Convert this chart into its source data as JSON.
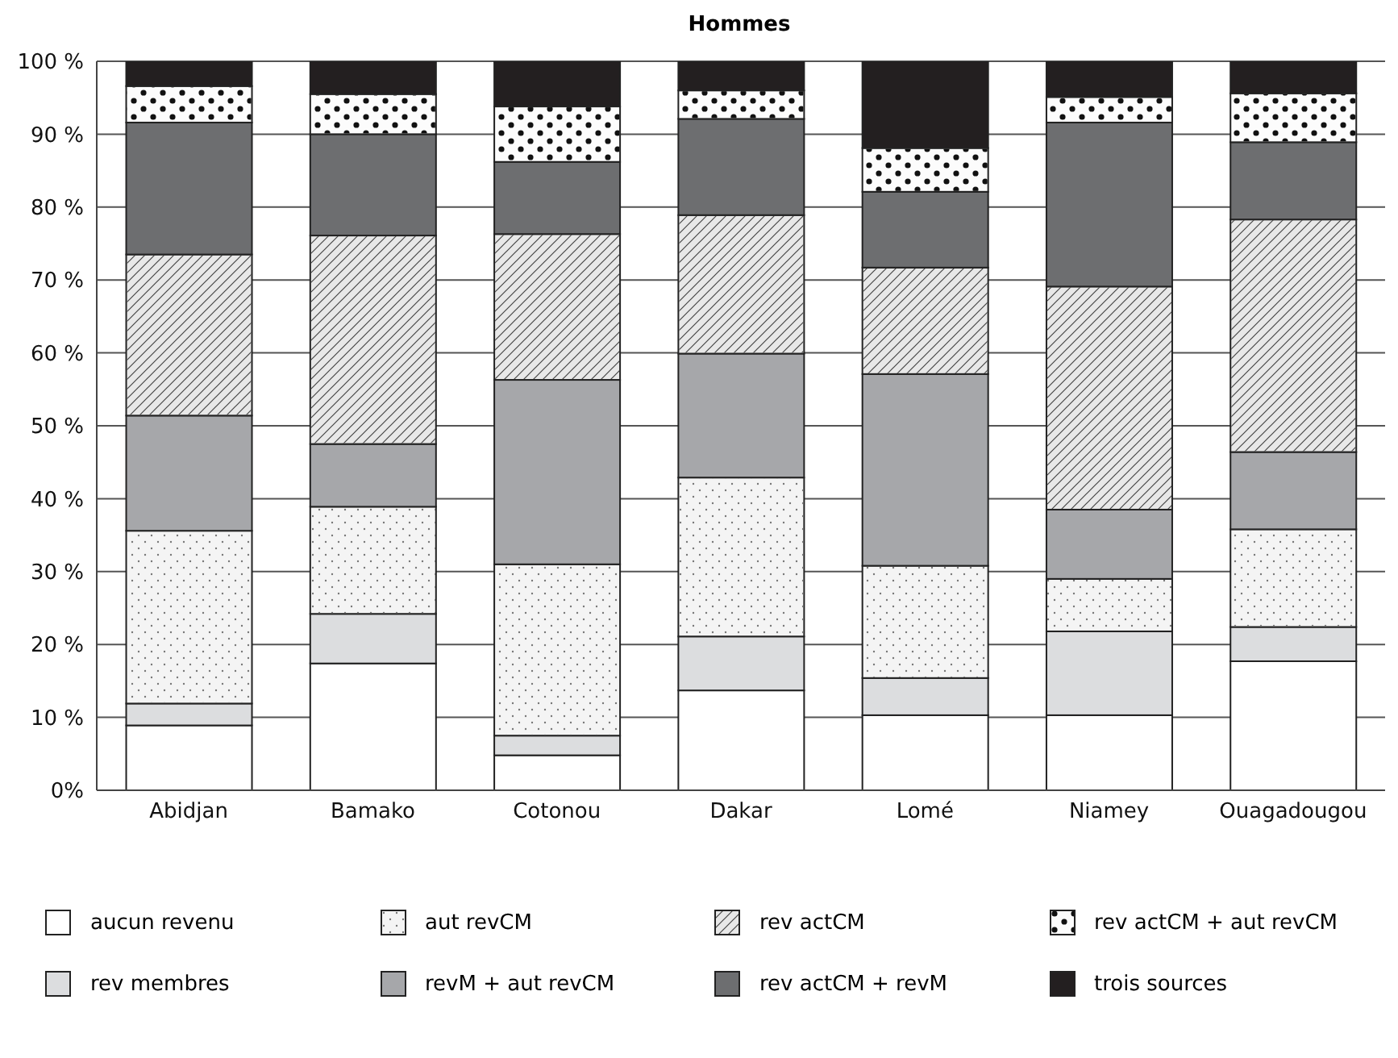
{
  "chart_data": {
    "type": "bar",
    "title": "Hommes",
    "stacked": true,
    "categories": [
      "Abidjan",
      "Bamako",
      "Cotonou",
      "Dakar",
      "Lomé",
      "Niamey",
      "Ouagadougou"
    ],
    "series": [
      {
        "name": "aucun revenu",
        "color": "#ffffff",
        "values": [
          8.9,
          17.4,
          4.8,
          13.7,
          10.3,
          10.3,
          17.7
        ]
      },
      {
        "name": "rev membres",
        "color": "#dcdddf",
        "values": [
          3.0,
          6.8,
          2.7,
          7.4,
          5.1,
          11.5,
          4.7
        ]
      },
      {
        "name": "aut revCM",
        "color": "#f4f4f4",
        "values": [
          23.7,
          14.7,
          23.5,
          21.8,
          15.4,
          7.2,
          13.4
        ]
      },
      {
        "name": "revM + aut revCM",
        "color": "#a6a7aa",
        "values": [
          15.8,
          8.6,
          25.3,
          17.0,
          26.3,
          9.5,
          10.6
        ]
      },
      {
        "name": "rev actCM",
        "color": "#e8e8e8",
        "values": [
          22.1,
          28.6,
          20.0,
          19.0,
          14.6,
          30.6,
          31.9
        ]
      },
      {
        "name": "rev actCM + revM",
        "color": "#6d6e70",
        "values": [
          18.1,
          13.9,
          9.9,
          13.2,
          10.4,
          22.5,
          10.6
        ]
      },
      {
        "name": "rev actCM + aut revCM",
        "color": "#fcfcfc",
        "values": [
          5.0,
          5.5,
          7.6,
          3.9,
          6.0,
          3.5,
          6.7
        ]
      },
      {
        "name": "trois sources",
        "color": "#231f20",
        "values": [
          3.4,
          4.5,
          6.2,
          4.0,
          11.9,
          4.9,
          4.4
        ]
      }
    ],
    "ylim": [
      0,
      100
    ],
    "yticks": [
      {
        "value": 0,
        "label": "0%"
      },
      {
        "value": 10,
        "label": "10 %"
      },
      {
        "value": 20,
        "label": "20 %"
      },
      {
        "value": 30,
        "label": "30 %"
      },
      {
        "value": 40,
        "label": "40 %"
      },
      {
        "value": 50,
        "label": "50 %"
      },
      {
        "value": 60,
        "label": "60 %"
      },
      {
        "value": 70,
        "label": "70 %"
      },
      {
        "value": 80,
        "label": "80 %"
      },
      {
        "value": 90,
        "label": "90 %"
      },
      {
        "value": 100,
        "label": "100 %"
      }
    ],
    "grid": "y",
    "legend": "bottom"
  }
}
